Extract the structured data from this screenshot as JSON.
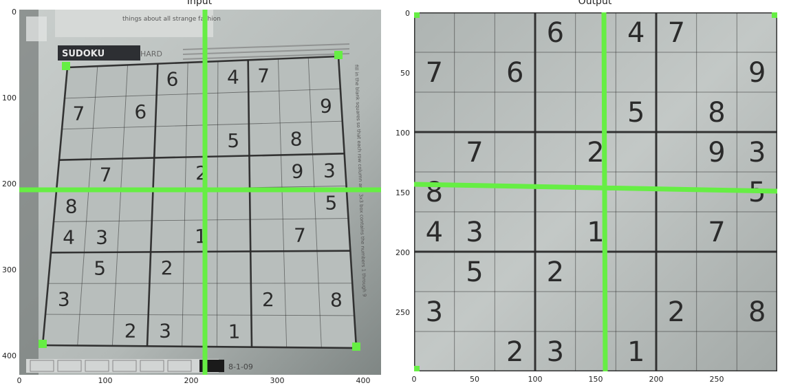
{
  "titles": {
    "left": "Input",
    "right": "Output"
  },
  "axes": {
    "left": {
      "x_ticks": [
        "0",
        "100",
        "200",
        "300",
        "400"
      ],
      "y_ticks": [
        "0",
        "100",
        "200",
        "300",
        "400"
      ]
    },
    "right": {
      "x_ticks": [
        "0",
        "50",
        "100",
        "150",
        "200",
        "250"
      ],
      "y_ticks": [
        "0",
        "50",
        "100",
        "150",
        "200",
        "250"
      ]
    }
  },
  "newspaper": {
    "sudoku_label": "SUDOKU",
    "level_label": "HARD",
    "date_label": "8-1-09",
    "header_text": "things about all strange fashion",
    "side_text": "fill in the blank squares so that each row column and 3x3 box contains the numbers 1 through 9"
  },
  "puzzle_grid": [
    [
      "",
      "",
      "",
      "6",
      "",
      "4",
      "7",
      "",
      ""
    ],
    [
      "7",
      "",
      "6",
      "",
      "",
      "",
      "",
      "",
      "9"
    ],
    [
      "",
      "",
      "",
      "",
      "",
      "5",
      "",
      "8",
      ""
    ],
    [
      "",
      "7",
      "",
      "",
      "2",
      "",
      "",
      "9",
      "3"
    ],
    [
      "8",
      "",
      "",
      "",
      "",
      "",
      "",
      "",
      "5"
    ],
    [
      "4",
      "3",
      "",
      "",
      "1",
      "",
      "",
      "7",
      ""
    ],
    [
      "",
      "5",
      "",
      "2",
      "",
      "",
      "",
      "",
      ""
    ],
    [
      "3",
      "",
      "",
      "",
      "",
      "",
      "2",
      "",
      "8"
    ],
    [
      "",
      "",
      "2",
      "3",
      "",
      "1",
      "",
      "",
      ""
    ]
  ],
  "colors": {
    "marker": "#66ee44",
    "paper": "#bfc5c3",
    "ink": "#2b2b2b"
  }
}
